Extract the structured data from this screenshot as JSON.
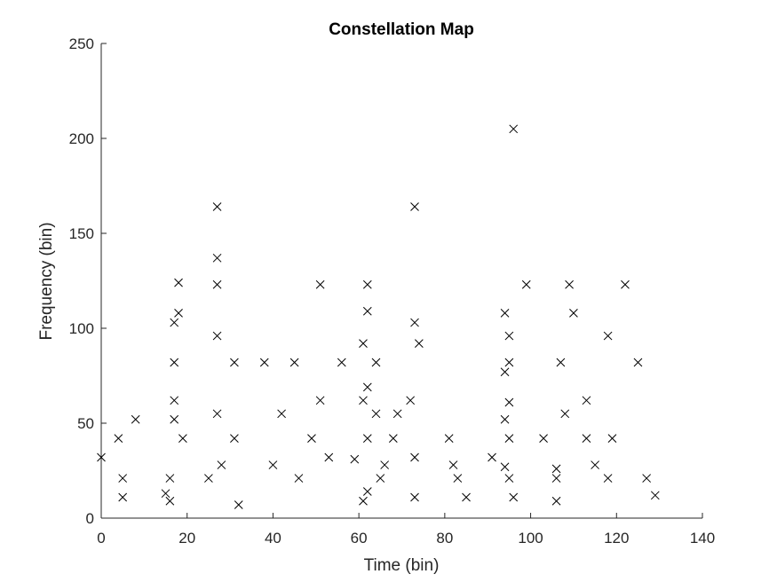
{
  "chart_data": {
    "type": "scatter",
    "title": "Constellation Map",
    "xlabel": "Time (bin)",
    "ylabel": "Frequency (bin)",
    "xlim": [
      0,
      140
    ],
    "ylim": [
      0,
      250
    ],
    "xticks": [
      0,
      20,
      40,
      60,
      80,
      100,
      120,
      140
    ],
    "yticks": [
      0,
      50,
      100,
      150,
      200,
      250
    ],
    "marker": "x",
    "grid": false,
    "points": [
      [
        0,
        32
      ],
      [
        4,
        42
      ],
      [
        5,
        21
      ],
      [
        5,
        11
      ],
      [
        8,
        52
      ],
      [
        15,
        13
      ],
      [
        16,
        21
      ],
      [
        16,
        9
      ],
      [
        17,
        103
      ],
      [
        17,
        82
      ],
      [
        17,
        62
      ],
      [
        17,
        52
      ],
      [
        18,
        124
      ],
      [
        18,
        108
      ],
      [
        19,
        42
      ],
      [
        25,
        21
      ],
      [
        27,
        164
      ],
      [
        27,
        137
      ],
      [
        27,
        123
      ],
      [
        27,
        96
      ],
      [
        27,
        55
      ],
      [
        28,
        28
      ],
      [
        31,
        82
      ],
      [
        31,
        42
      ],
      [
        32,
        7
      ],
      [
        38,
        82
      ],
      [
        40,
        28
      ],
      [
        42,
        55
      ],
      [
        45,
        82
      ],
      [
        46,
        21
      ],
      [
        49,
        42
      ],
      [
        51,
        123
      ],
      [
        51,
        62
      ],
      [
        53,
        32
      ],
      [
        56,
        82
      ],
      [
        59,
        31
      ],
      [
        61,
        92
      ],
      [
        61,
        62
      ],
      [
        61,
        9
      ],
      [
        62,
        123
      ],
      [
        62,
        109
      ],
      [
        62,
        69
      ],
      [
        62,
        42
      ],
      [
        62,
        14
      ],
      [
        64,
        82
      ],
      [
        64,
        55
      ],
      [
        65,
        21
      ],
      [
        66,
        28
      ],
      [
        68,
        42
      ],
      [
        69,
        55
      ],
      [
        72,
        62
      ],
      [
        73,
        164
      ],
      [
        73,
        103
      ],
      [
        73,
        32
      ],
      [
        73,
        11
      ],
      [
        74,
        92
      ],
      [
        81,
        42
      ],
      [
        82,
        28
      ],
      [
        83,
        21
      ],
      [
        85,
        11
      ],
      [
        91,
        32
      ],
      [
        94,
        108
      ],
      [
        94,
        77
      ],
      [
        94,
        52
      ],
      [
        94,
        27
      ],
      [
        95,
        96
      ],
      [
        95,
        82
      ],
      [
        95,
        61
      ],
      [
        95,
        42
      ],
      [
        95,
        21
      ],
      [
        96,
        205
      ],
      [
        96,
        11
      ],
      [
        99,
        123
      ],
      [
        103,
        42
      ],
      [
        106,
        26
      ],
      [
        106,
        21
      ],
      [
        106,
        9
      ],
      [
        107,
        82
      ],
      [
        108,
        55
      ],
      [
        109,
        123
      ],
      [
        110,
        108
      ],
      [
        113,
        62
      ],
      [
        113,
        42
      ],
      [
        115,
        28
      ],
      [
        118,
        96
      ],
      [
        118,
        21
      ],
      [
        119,
        42
      ],
      [
        122,
        123
      ],
      [
        125,
        82
      ],
      [
        127,
        21
      ],
      [
        129,
        12
      ]
    ]
  }
}
